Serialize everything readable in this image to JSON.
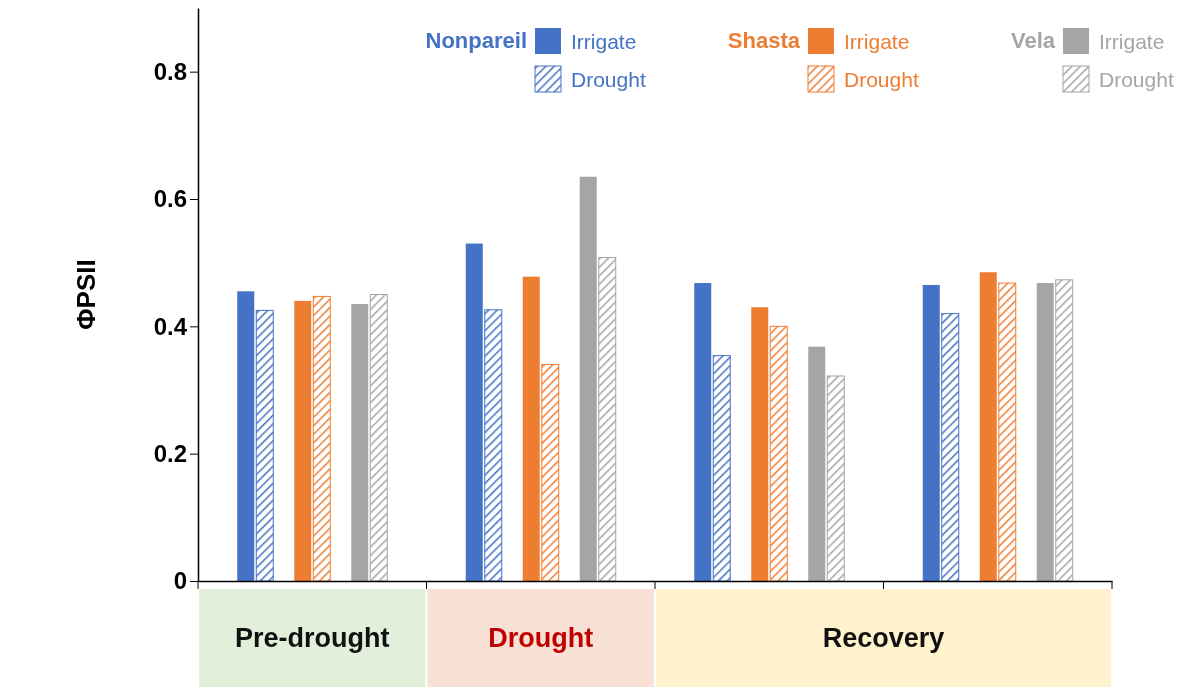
{
  "chart_data": {
    "type": "bar",
    "ylabel": "ΦPSII",
    "categories": [
      null,
      null,
      null,
      null
    ],
    "series": [
      {
        "name": "Irrigate",
        "color": "#4472c4",
        "values": [
          0.455,
          0.53,
          0.468,
          0.465
        ]
      },
      {
        "name": "Drought",
        "color": "#4472c4",
        "values": [
          0.425,
          0.426,
          0.354,
          0.42
        ]
      },
      {
        "name": "Irrigate",
        "color": "#ed7d31",
        "values": [
          0.44,
          0.478,
          0.43,
          0.485
        ]
      },
      {
        "name": "Drought",
        "color": "#ed7d31",
        "values": [
          0.447,
          0.34,
          0.4,
          0.468
        ]
      },
      {
        "name": "Irrigate",
        "color": "#a5a5a5",
        "values": [
          0.435,
          0.635,
          0.368,
          0.468
        ]
      },
      {
        "name": "Drought",
        "color": "#a5a5a5",
        "values": [
          0.45,
          0.508,
          0.322,
          0.473
        ]
      }
    ],
    "annotations": [
      "Nonpareil",
      "Shasta",
      "Vela",
      "Pre-drought",
      "Drought",
      "Recovery"
    ],
    "ylim": [
      0,
      0.9
    ],
    "yticks": [
      0,
      0.2,
      0.4,
      0.6,
      0.8
    ],
    "grid": false,
    "legend": "top right"
  }
}
